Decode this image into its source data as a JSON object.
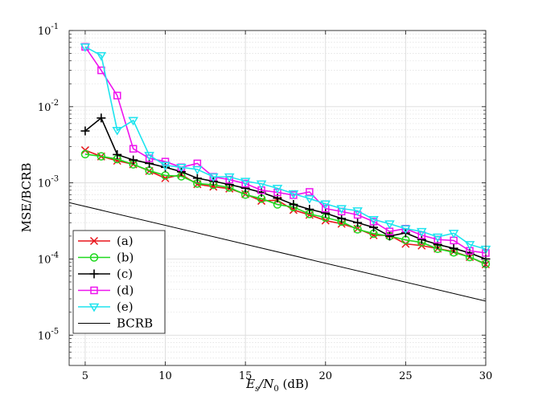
{
  "chart_data": {
    "type": "line",
    "title": "",
    "xlabel": "E_s/N_0 (dB)",
    "xlabel_parts": {
      "main": "E",
      "sub1": "s",
      "slash": "/N",
      "sub2": "0",
      "unit": " (dB)"
    },
    "ylabel": "MSE/BCRB",
    "xlim": [
      4,
      30
    ],
    "ylim": [
      4e-06,
      0.1
    ],
    "yscale": "log",
    "grid": true,
    "xticks": [
      5,
      10,
      15,
      20,
      25,
      30
    ],
    "xtick_labels": [
      "5",
      "10",
      "15",
      "20",
      "25",
      "30"
    ],
    "yticks": [
      1e-05,
      0.0001,
      0.001,
      0.01,
      0.1
    ],
    "ytick_labels": [
      {
        "base": "10",
        "exp": "-5"
      },
      {
        "base": "10",
        "exp": "-4"
      },
      {
        "base": "10",
        "exp": "-3"
      },
      {
        "base": "10",
        "exp": "-2"
      },
      {
        "base": "10",
        "exp": "-1"
      }
    ],
    "legend_position": "bottom-left",
    "x": [
      5,
      6,
      7,
      8,
      9,
      10,
      11,
      12,
      13,
      14,
      15,
      16,
      17,
      18,
      19,
      20,
      21,
      22,
      23,
      24,
      25,
      26,
      27,
      28,
      29,
      30
    ],
    "series": [
      {
        "name": "(a)",
        "color": "#e8141a",
        "marker": "x",
        "values": [
          0.00268,
          0.00222,
          0.00195,
          0.00175,
          0.00143,
          0.00115,
          0.00128,
          0.00096,
          0.00089,
          0.00084,
          0.00071,
          0.00058,
          0.00059,
          0.00044,
          0.00038,
          0.00032,
          0.00029,
          0.00025,
          0.000205,
          0.000205,
          0.000158,
          0.00015,
          0.000137,
          0.000125,
          0.000106,
          8.5e-05
        ]
      },
      {
        "name": "(b)",
        "color": "#1ed81e",
        "marker": "circle",
        "values": [
          0.00238,
          0.00223,
          0.00205,
          0.00175,
          0.00145,
          0.00125,
          0.00122,
          0.00098,
          0.00094,
          0.00087,
          0.0007,
          0.00062,
          0.00052,
          0.00048,
          0.00039,
          0.00035,
          0.00031,
          0.000245,
          0.000215,
          0.0002,
          0.000178,
          0.000165,
          0.000136,
          0.000122,
          0.000106,
          8.6e-05
        ]
      },
      {
        "name": "(c)",
        "color": "#000000",
        "marker": "plus",
        "values": [
          0.0048,
          0.0071,
          0.00235,
          0.002,
          0.0018,
          0.0016,
          0.0014,
          0.00115,
          0.00105,
          0.00095,
          0.00085,
          0.00075,
          0.00063,
          0.00052,
          0.00045,
          0.0004,
          0.00034,
          0.0003,
          0.00026,
          0.0002,
          0.00022,
          0.00018,
          0.000155,
          0.000138,
          0.00012,
          0.0001
        ]
      },
      {
        "name": "(d)",
        "color": "#ee14ee",
        "marker": "square",
        "values": [
          0.061,
          0.03,
          0.014,
          0.0028,
          0.0021,
          0.0019,
          0.0016,
          0.0018,
          0.0012,
          0.0011,
          0.00098,
          0.0008,
          0.00075,
          0.00069,
          0.00076,
          0.00046,
          0.00042,
          0.00038,
          0.00031,
          0.00023,
          0.00025,
          0.000205,
          0.00018,
          0.000175,
          0.000128,
          0.00012
        ]
      },
      {
        "name": "(e)",
        "color": "#1ee4ee",
        "marker": "triangle-down",
        "values": [
          0.061,
          0.047,
          0.0049,
          0.0066,
          0.0023,
          0.0017,
          0.0016,
          0.0015,
          0.0012,
          0.0012,
          0.00105,
          0.00097,
          0.00085,
          0.00072,
          0.00062,
          0.00053,
          0.00046,
          0.00043,
          0.00033,
          0.00029,
          0.00025,
          0.00023,
          0.000195,
          0.000218,
          0.000155,
          0.000135
        ]
      },
      {
        "name": "BCRB",
        "color": "#000000",
        "marker": "none",
        "x": [
          4,
          30
        ],
        "values": [
          0.00055,
          2.8e-05
        ]
      }
    ]
  }
}
